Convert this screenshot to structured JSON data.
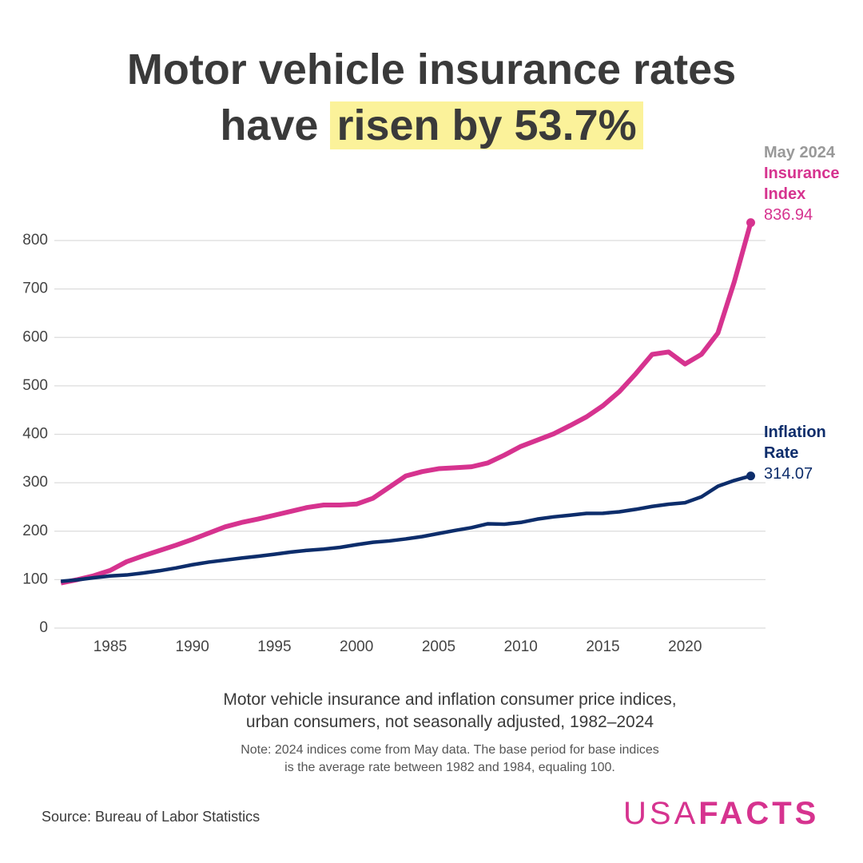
{
  "title_line1": "Motor vehicle insurance rates",
  "title_prefix": "have",
  "title_highlight": "risen by 53.7%",
  "chart_data": {
    "type": "line",
    "end_date": "May 2024",
    "x": [
      1982,
      1983,
      1984,
      1985,
      1986,
      1987,
      1988,
      1989,
      1990,
      1991,
      1992,
      1993,
      1994,
      1995,
      1996,
      1997,
      1998,
      1999,
      2000,
      2001,
      2002,
      2003,
      2004,
      2005,
      2006,
      2007,
      2008,
      2009,
      2010,
      2011,
      2012,
      2013,
      2014,
      2015,
      2016,
      2017,
      2018,
      2019,
      2020,
      2021,
      2022,
      2023,
      2024
    ],
    "series": [
      {
        "name": "Insurance Index",
        "color": "#d6338f",
        "values": [
          93,
          100,
          108,
          119,
          137,
          149,
          160,
          171,
          183,
          196,
          209,
          218,
          225,
          233,
          241,
          249,
          254,
          254,
          256,
          268,
          291,
          314,
          323,
          329,
          331,
          333,
          341,
          357,
          375,
          388,
          401,
          418,
          436,
          459,
          488,
          525,
          565,
          570,
          545,
          565,
          609,
          715,
          836.94
        ]
      },
      {
        "name": "Inflation Rate",
        "color": "#0d2d6b",
        "values": [
          96.5,
          99.6,
          103.9,
          107.6,
          109.6,
          113.6,
          118.3,
          124.0,
          130.7,
          136.2,
          140.3,
          144.5,
          148.2,
          152.4,
          156.9,
          160.5,
          163.0,
          166.6,
          172.2,
          177.1,
          179.9,
          184.0,
          188.9,
          195.3,
          201.6,
          207.3,
          215.3,
          214.5,
          218.1,
          224.9,
          229.6,
          233.0,
          236.7,
          237.0,
          240.0,
          245.1,
          251.1,
          255.7,
          258.8,
          271.0,
          292.7,
          304.7,
          314.07
        ]
      }
    ],
    "xlim": [
      1981.6,
      2024.9
    ],
    "xticks": [
      1985,
      1990,
      1995,
      2000,
      2005,
      2010,
      2015,
      2020
    ],
    "ylim": [
      0,
      850
    ],
    "yticks": [
      0,
      100,
      200,
      300,
      400,
      500,
      600,
      700,
      800
    ],
    "grid": true
  },
  "subtitle": [
    "Motor vehicle insurance and inflation consumer price indices,",
    "urban consumers, not seasonally adjusted, 1982–2024"
  ],
  "note": [
    "Note: 2024 indices come from May data. The base period for base indices",
    "is the average rate between 1982 and 1984, equaling 100."
  ],
  "source": "Source: Bureau of Labor Statistics",
  "logo": [
    "USA",
    "FACTS"
  ]
}
